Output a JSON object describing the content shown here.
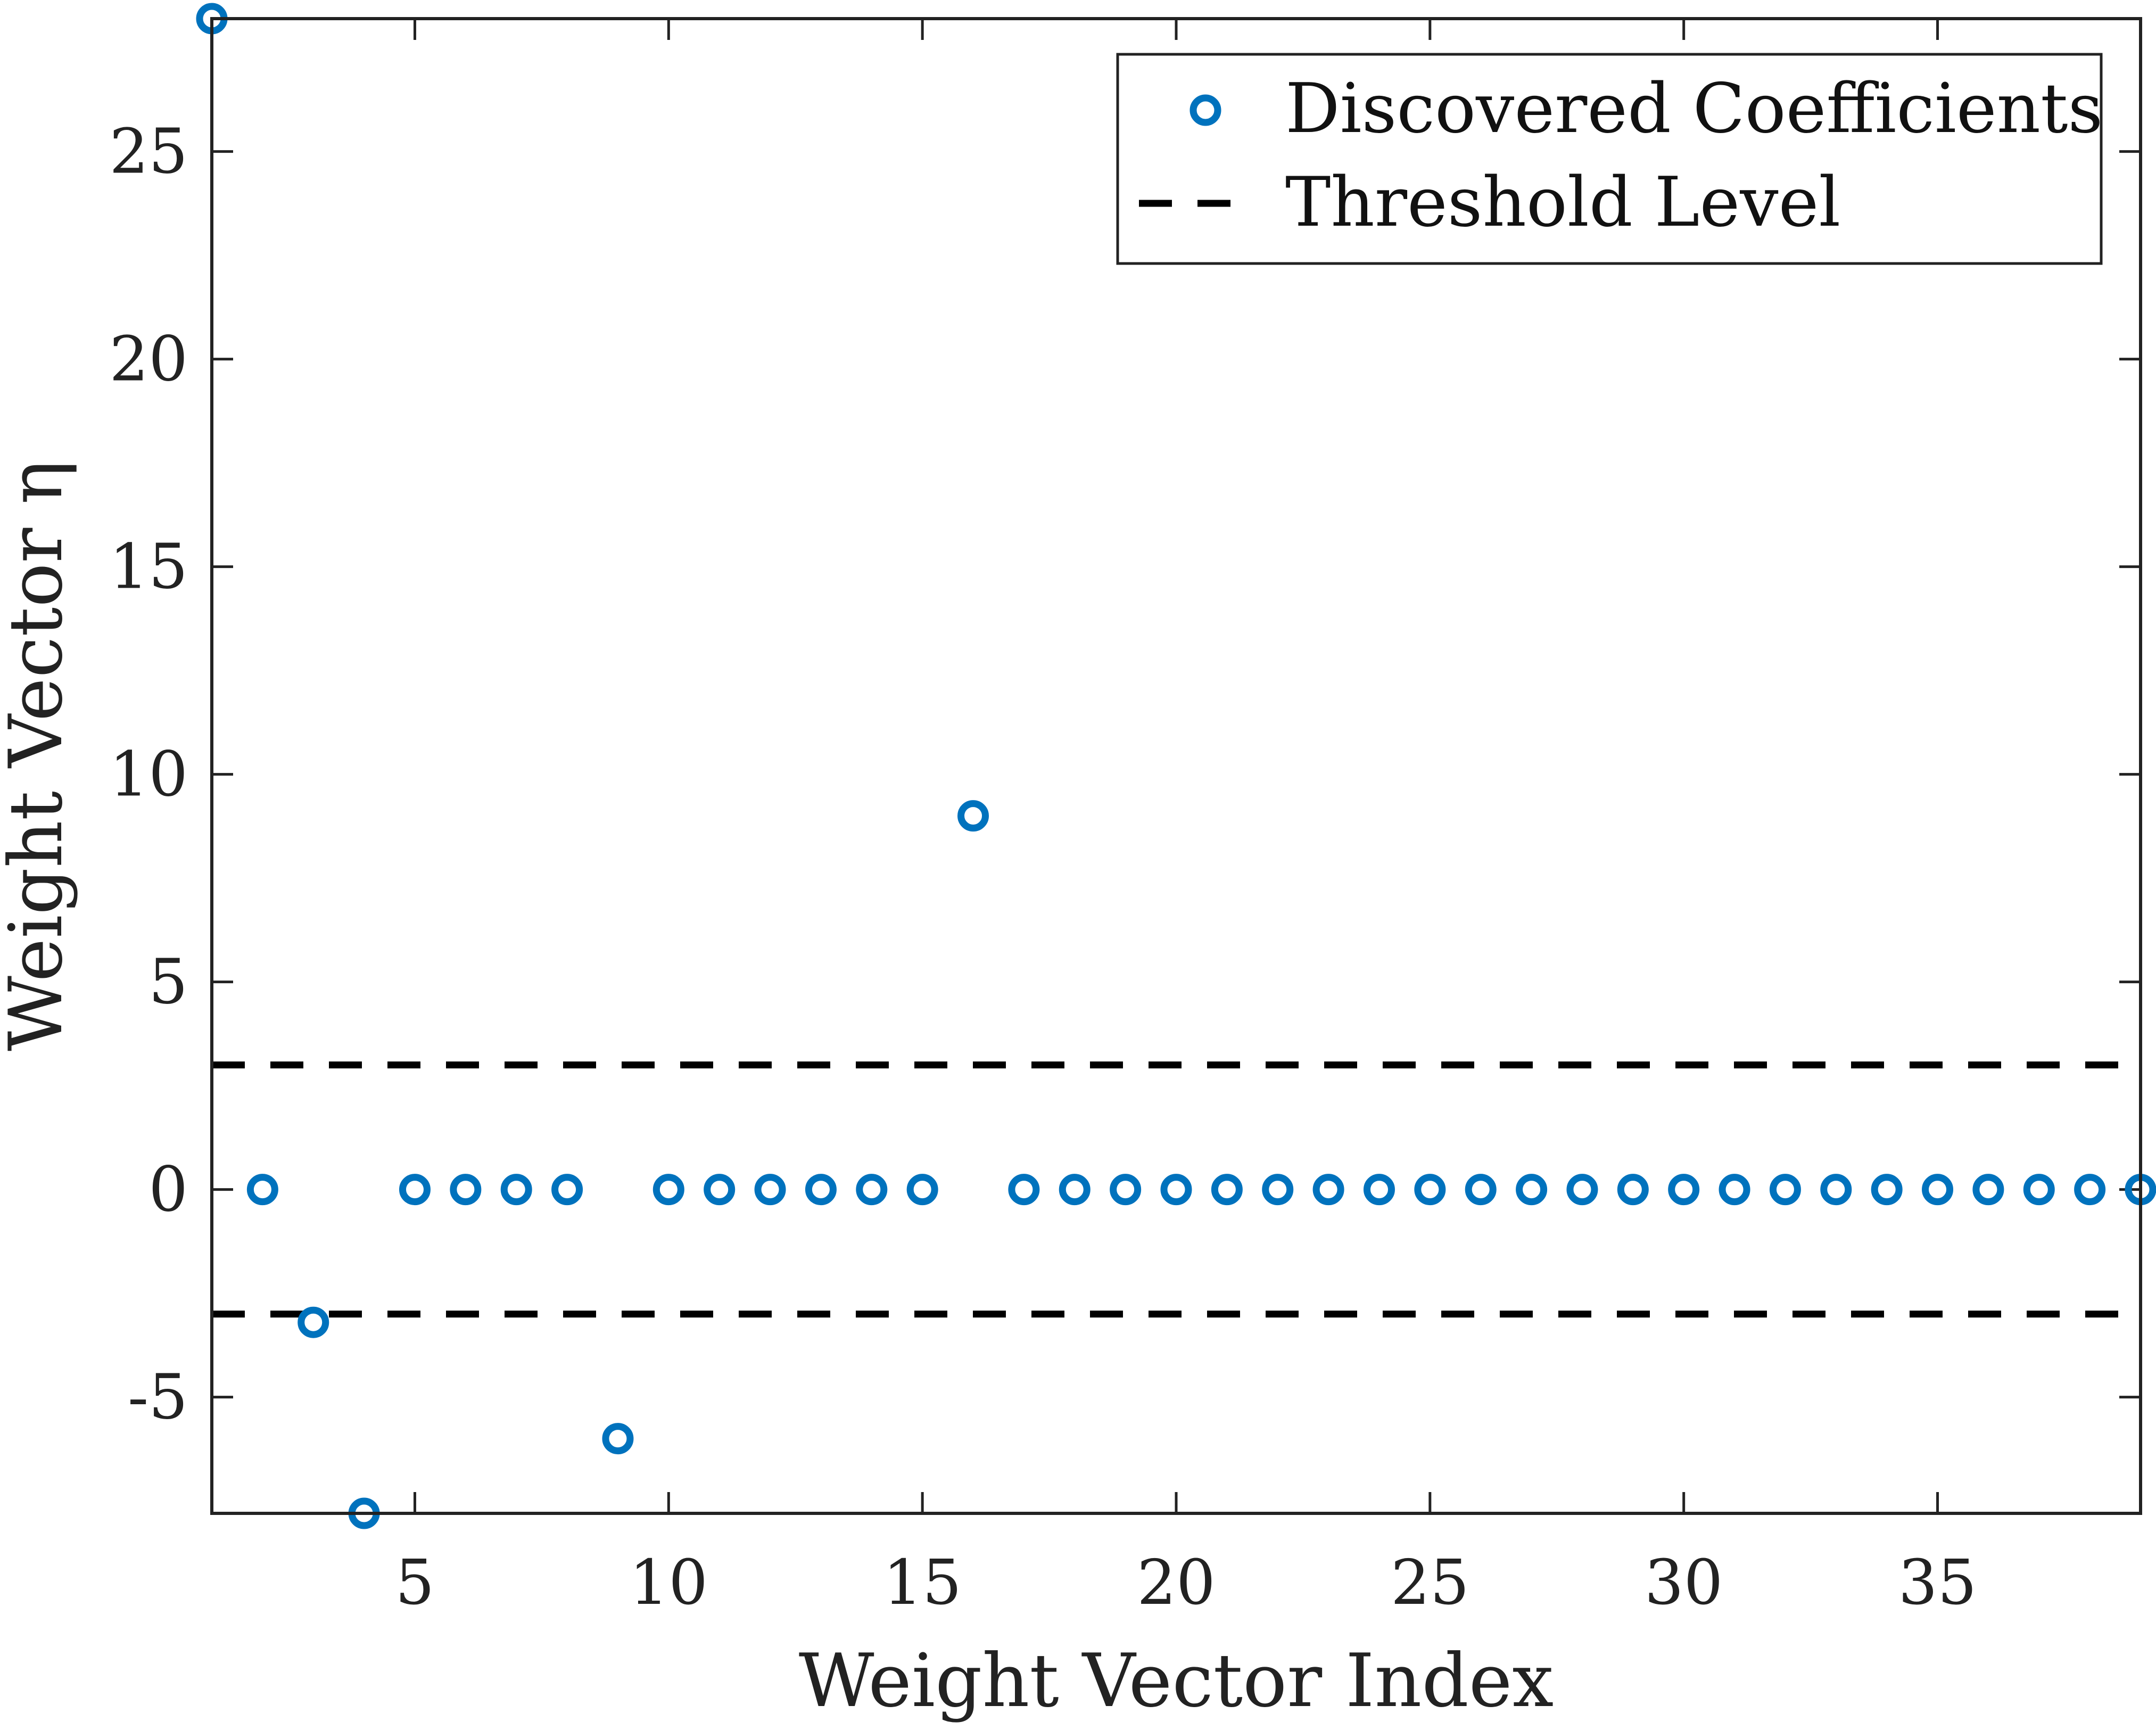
{
  "chart_data": {
    "type": "scatter",
    "title": "",
    "xlabel": "Weight Vector Index",
    "ylabel": "Weight Vector η",
    "xlim": [
      1,
      39
    ],
    "ylim": [
      -7.8,
      28.2
    ],
    "xticks": [
      5,
      10,
      15,
      20,
      25,
      30,
      35
    ],
    "yticks": [
      -5,
      0,
      5,
      10,
      15,
      20,
      25
    ],
    "xtick_labels": [
      "5",
      "10",
      "15",
      "20",
      "25",
      "30",
      "35"
    ],
    "ytick_labels": [
      "-5",
      "0",
      "5",
      "10",
      "15",
      "20",
      "25"
    ],
    "grid": false,
    "legend_position": "top-right",
    "series": [
      {
        "name": "Discovered Coefficients",
        "marker": "circle-open",
        "color": "#0072BD",
        "x": [
          1,
          2,
          3,
          4,
          5,
          6,
          7,
          8,
          9,
          10,
          11,
          12,
          13,
          14,
          15,
          16,
          17,
          18,
          19,
          20,
          21,
          22,
          23,
          24,
          25,
          26,
          27,
          28,
          29,
          30,
          31,
          32,
          33,
          34,
          35,
          36,
          37,
          38,
          39
        ],
        "y": [
          28.2,
          0,
          -3.2,
          -7.8,
          0,
          0,
          0,
          0,
          -6.0,
          0,
          0,
          0,
          0,
          0,
          0,
          9.0,
          0,
          0,
          0,
          0,
          0,
          0,
          0,
          0,
          0,
          0,
          0,
          0,
          0,
          0,
          0,
          0,
          0,
          0,
          0,
          0,
          0,
          0,
          0
        ]
      },
      {
        "name": "Threshold Level",
        "style": "dashed",
        "color": "#000000",
        "levels": [
          3,
          -3
        ]
      }
    ]
  }
}
